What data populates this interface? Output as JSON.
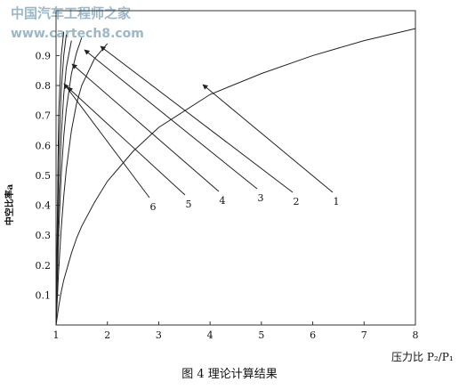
{
  "chart_data": {
    "type": "line",
    "watermark": [
      "中国汽车工程师之家",
      "www.cartech8.com"
    ],
    "caption": "图 4 理论计算结果",
    "x_label": "压力比 P₂/P₁",
    "y_label": "中空比率a",
    "x": [
      1,
      1.05,
      1.1,
      1.15,
      1.2,
      1.3,
      1.4,
      1.5,
      1.75,
      2,
      2.5,
      3,
      4,
      5,
      6,
      7,
      8
    ],
    "series": [
      {
        "name": "1",
        "color": "#222222",
        "values": [
          0,
          0.06,
          0.11,
          0.15,
          0.18,
          0.24,
          0.29,
          0.33,
          0.41,
          0.48,
          0.58,
          0.66,
          0.77,
          0.84,
          0.9,
          0.95,
          0.99
        ]
      },
      {
        "name": "2",
        "color": "#222222",
        "values": [
          0,
          0.18,
          0.32,
          0.43,
          0.52,
          0.65,
          0.74,
          0.8,
          0.89,
          0.94,
          null,
          null,
          null,
          null,
          null,
          null,
          null
        ]
      },
      {
        "name": "3",
        "color": "#222222",
        "values": [
          0,
          0.3,
          0.5,
          0.63,
          0.72,
          0.84,
          0.91,
          0.96,
          null,
          null,
          null,
          null,
          null,
          null,
          null,
          null,
          null
        ]
      },
      {
        "name": "4",
        "color": "#222222",
        "values": [
          0,
          0.4,
          0.63,
          0.77,
          0.86,
          0.95,
          null,
          null,
          null,
          null,
          null,
          null,
          null,
          null,
          null,
          null,
          null
        ]
      },
      {
        "name": "5",
        "color": "#222222",
        "values": [
          0,
          0.55,
          0.78,
          0.9,
          0.97,
          null,
          null,
          null,
          null,
          null,
          null,
          null,
          null,
          null,
          null,
          null,
          null
        ]
      },
      {
        "name": "6",
        "color": "#222222",
        "values": [
          0,
          0.7,
          0.9,
          0.98,
          null,
          null,
          null,
          null,
          null,
          null,
          null,
          null,
          null,
          null,
          null,
          null,
          null
        ]
      }
    ],
    "xlim": [
      1,
      8
    ],
    "xticks": [
      1,
      2,
      3,
      4,
      5,
      6,
      7,
      8
    ],
    "ylim": [
      0,
      1.05
    ],
    "yticks": [
      0.1,
      0.2,
      0.3,
      0.4,
      0.5,
      0.6,
      0.7,
      0.8,
      0.9
    ],
    "grid": false
  }
}
